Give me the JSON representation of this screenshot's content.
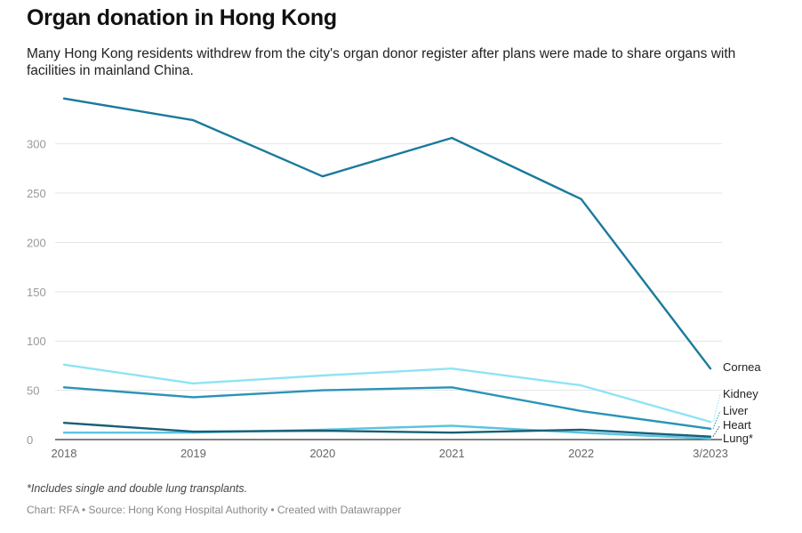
{
  "header": {
    "title": "Organ donation in Hong Kong",
    "subtitle": "Many Hong Kong residents withdrew from the city's organ donor register after plans were made to share organs with facilities in mainland China."
  },
  "footer": {
    "note": "*Includes single and double lung transplants.",
    "credit": "Chart: RFA • Source: Hong Kong Hospital Authority • Created with Datawrapper"
  },
  "chart_data": {
    "type": "line",
    "title": "Organ donation in Hong Kong",
    "x": [
      "2018",
      "2019",
      "2020",
      "2021",
      "2022",
      "3/2023"
    ],
    "y_ticks": [
      0,
      50,
      100,
      150,
      200,
      250,
      300
    ],
    "ylim": [
      0,
      350
    ],
    "grid": true,
    "legend": "inline-right",
    "series": [
      {
        "name": "Cornea",
        "values": [
          346,
          324,
          267,
          306,
          244,
          72
        ],
        "color": "#1a7a9c"
      },
      {
        "name": "Kidney",
        "values": [
          76,
          57,
          65,
          72,
          55,
          18
        ],
        "color": "#8fe3f5"
      },
      {
        "name": "Liver",
        "values": [
          53,
          43,
          50,
          53,
          29,
          11
        ],
        "color": "#2a93b8"
      },
      {
        "name": "Heart",
        "values": [
          17,
          8,
          9,
          7,
          10,
          3
        ],
        "color": "#165f78"
      },
      {
        "name": "Lung*",
        "values": [
          7,
          7,
          10,
          14,
          7,
          1
        ],
        "color": "#5cc3e0"
      }
    ]
  }
}
